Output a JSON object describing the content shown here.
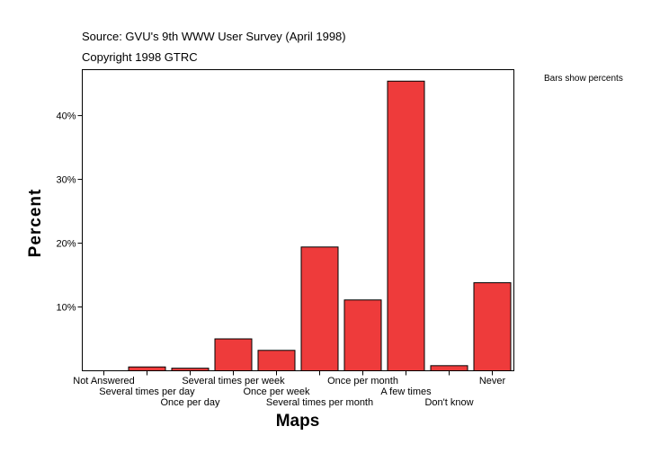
{
  "header": {
    "source": "Source: GVU's 9th WWW User Survey (April 1998)",
    "copyright": "Copyright 1998 GTRC"
  },
  "legend_note": "Bars show percents",
  "chart_data": {
    "type": "bar",
    "title": "",
    "xlabel": "Maps",
    "ylabel": "Percent",
    "categories": [
      "Not Answered",
      "Several times per day",
      "Once per day",
      "Several times per week",
      "Once per week",
      "Several times per month",
      "Once per month",
      "A few times",
      "Don't know",
      "Never"
    ],
    "values": [
      0,
      0.6,
      0.4,
      5.0,
      3.2,
      19.4,
      11.1,
      45.4,
      0.8,
      13.8
    ],
    "ylim": [
      0,
      47.2
    ],
    "yticks": [
      10,
      20,
      30,
      40
    ],
    "ytick_labels": [
      "10%",
      "20%",
      "30%",
      "40%"
    ],
    "bar_color": "#ee3b3b",
    "grid": false
  }
}
